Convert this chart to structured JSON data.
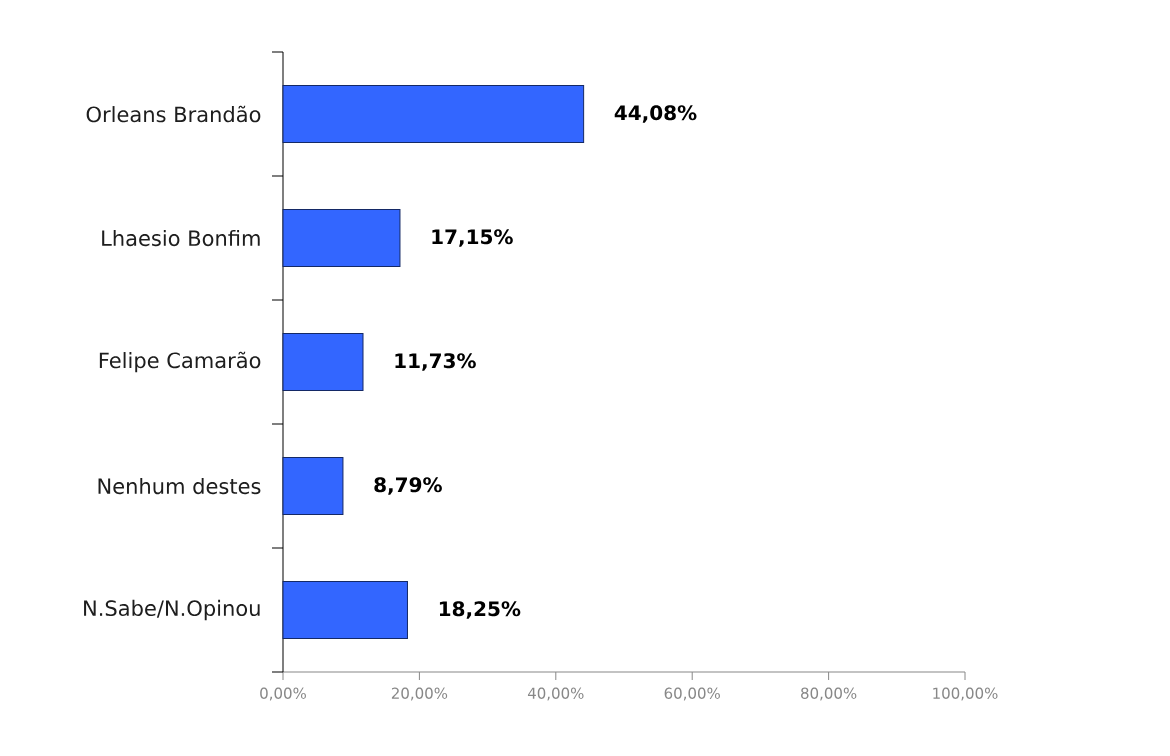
{
  "chart_data": {
    "type": "bar",
    "orientation": "horizontal",
    "categories": [
      "Orleans Brandão",
      "Lhaesio Bonfim",
      "Felipe Camarão",
      "Nenhum destes",
      "N.Sabe/N.Opinou"
    ],
    "values": [
      44.08,
      17.15,
      11.73,
      8.79,
      18.25
    ],
    "value_labels": [
      "44,08%",
      "17,15%",
      "11,73%",
      "8,79%",
      "18,25%"
    ],
    "color": "#3366ff",
    "xlim": [
      0,
      100
    ],
    "xticks": [
      {
        "value": 0,
        "label": "0,00%"
      },
      {
        "value": 20,
        "label": "20,00%"
      },
      {
        "value": 40,
        "label": "40,00%"
      },
      {
        "value": 60,
        "label": "60,00%"
      },
      {
        "value": 80,
        "label": "80,00%"
      },
      {
        "value": 100,
        "label": "100,00%"
      }
    ]
  }
}
